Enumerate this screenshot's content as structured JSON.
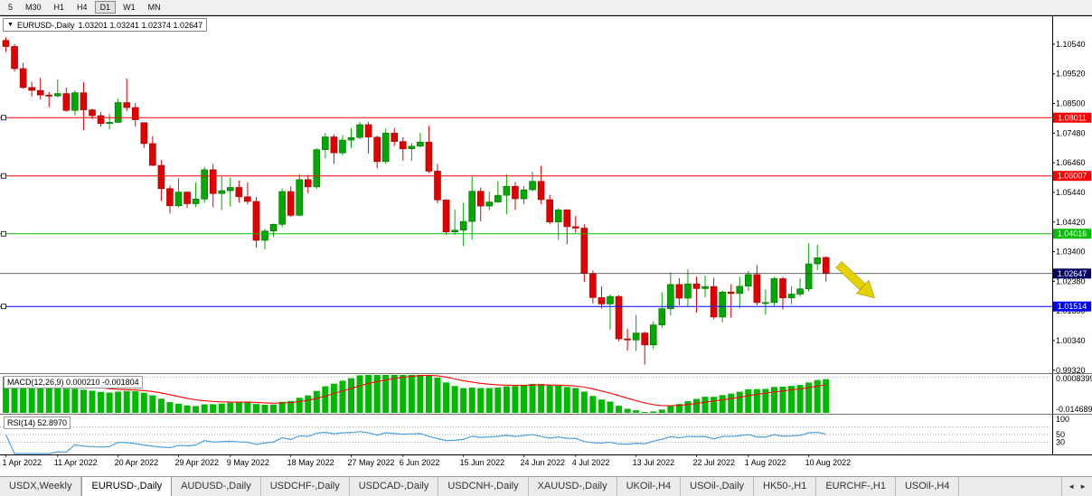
{
  "toolbar": {
    "timeframes": [
      {
        "label": "5",
        "active": false
      },
      {
        "label": "M30",
        "active": false
      },
      {
        "label": "H1",
        "active": false
      },
      {
        "label": "H4",
        "active": false
      },
      {
        "label": "D1",
        "active": true
      },
      {
        "label": "W1",
        "active": false
      },
      {
        "label": "MN",
        "active": false
      }
    ]
  },
  "chart": {
    "symbol_label": "EURUSD-,Daily",
    "ohlc": "1.03201 1.03241 1.02374 1.02647",
    "open": "1.03201",
    "high": "1.03241",
    "low": "1.02374",
    "close": "1.02647",
    "price_axis": [
      "1.10540",
      "1.09520",
      "1.08500",
      "1.07480",
      "1.06460",
      "1.05440",
      "1.04420",
      "1.03400",
      "1.02380",
      "1.01360",
      "1.00340",
      "0.99320"
    ],
    "hlines": [
      {
        "price": 1.08011,
        "label": "1.08011",
        "color": "#ff0000"
      },
      {
        "price": 1.06007,
        "label": "1.06007",
        "color": "#ff0000"
      },
      {
        "price": 1.04016,
        "label": "1.04016",
        "color": "#00c000"
      },
      {
        "price": 1.01514,
        "label": "1.01514",
        "color": "#0000ff"
      }
    ],
    "current_price": {
      "price": 1.02647,
      "label": "1.02647",
      "tag_color": "#000066",
      "line_color": "#333333"
    }
  },
  "colors": {
    "up": "#00a800",
    "up_border": "#007000",
    "down": "#e00000",
    "down_border": "#9c0000",
    "macd_hist": "#00b800",
    "macd_signal": "#ff0000",
    "rsi_line": "#4aa0e8",
    "arrow": "#e5d000",
    "arrow_border": "#a69400"
  },
  "macd": {
    "display": "MACD(12,26,9) 0.000210 -0.001804",
    "name": "MACD",
    "fast": 12,
    "slow": 26,
    "signal_period": 9,
    "macd_value": "0.000210",
    "signal_value": "-0.001804",
    "scale_top": "0.0008399",
    "scale_bottom": "-0.0146899"
  },
  "rsi": {
    "display": "RSI(14) 52.8970",
    "name": "RSI",
    "period": 14,
    "value": "52.8970",
    "scale_labels": [
      "100",
      "50",
      "30"
    ]
  },
  "tabs": [
    {
      "label": "USDX,Weekly",
      "active": false
    },
    {
      "label": "EURUSD-,Daily",
      "active": true
    },
    {
      "label": "AUDUSD-,Daily",
      "active": false
    },
    {
      "label": "USDCHF-,Daily",
      "active": false
    },
    {
      "label": "USDCAD-,Daily",
      "active": false
    },
    {
      "label": "USDCNH-,Daily",
      "active": false
    },
    {
      "label": "XAUUSD-,Daily",
      "active": false
    },
    {
      "label": "UKOil-,H4",
      "active": false
    },
    {
      "label": "USOil-,Daily",
      "active": false
    },
    {
      "label": "HK50-,H1",
      "active": false
    },
    {
      "label": "EURCHF-,H1",
      "active": false
    },
    {
      "label": "USOil-,H4",
      "active": false
    }
  ],
  "tab_arrows": {
    "left": "◄",
    "right": "►"
  },
  "chart_data": {
    "type": "candlestick",
    "title": "EURUSD-,Daily",
    "y_range": [
      0.9922,
      1.1147
    ],
    "price_axis_ticks": [
      "1.10540",
      "1.09520",
      "1.08500",
      "1.07480",
      "1.06460",
      "1.05440",
      "1.04420",
      "1.03400",
      "1.02380",
      "1.01360",
      "1.00340",
      "0.99320"
    ],
    "x_labels": [
      {
        "i": 0,
        "label": "1 Apr 2022"
      },
      {
        "i": 6,
        "label": "11 Apr 2022"
      },
      {
        "i": 13,
        "label": "20 Apr 2022"
      },
      {
        "i": 20,
        "label": "29 Apr 2022"
      },
      {
        "i": 26,
        "label": "9 May 2022"
      },
      {
        "i": 33,
        "label": "18 May 2022"
      },
      {
        "i": 40,
        "label": "27 May 2022"
      },
      {
        "i": 46,
        "label": "6 Jun 2022"
      },
      {
        "i": 53,
        "label": "15 Jun 2022"
      },
      {
        "i": 60,
        "label": "24 Jun 2022"
      },
      {
        "i": 66,
        "label": "4 Jul 2022"
      },
      {
        "i": 73,
        "label": "13 Jul 2022"
      },
      {
        "i": 80,
        "label": "22 Jul 2022"
      },
      {
        "i": 86,
        "label": "1 Aug 2022"
      },
      {
        "i": 93,
        "label": "10 Aug 2022"
      }
    ],
    "candles": [
      [
        1.1067,
        1.1077,
        1.1027,
        1.1046
      ],
      [
        1.1046,
        1.1055,
        1.096,
        1.097
      ],
      [
        1.097,
        1.099,
        1.09,
        1.0905
      ],
      [
        1.0905,
        1.0925,
        1.0874,
        1.0895
      ],
      [
        1.0895,
        1.0938,
        1.0865,
        1.0879
      ],
      [
        1.0879,
        1.089,
        1.0837,
        1.0876
      ],
      [
        1.0876,
        1.0933,
        1.0871,
        1.0884
      ],
      [
        1.0884,
        1.0904,
        1.0821,
        1.0826
      ],
      [
        1.0826,
        1.0895,
        1.0809,
        1.0887
      ],
      [
        1.0887,
        1.0923,
        1.0757,
        1.0828
      ],
      [
        1.0828,
        1.0832,
        1.0796,
        1.0808
      ],
      [
        1.0808,
        1.0821,
        1.077,
        1.0781
      ],
      [
        1.0781,
        1.0815,
        1.0761,
        1.0785
      ],
      [
        1.0785,
        1.0867,
        1.0782,
        1.0853
      ],
      [
        1.0853,
        1.0936,
        1.0824,
        1.0836
      ],
      [
        1.0836,
        1.0852,
        1.077,
        1.0794
      ],
      [
        1.0784,
        1.0784,
        1.0697,
        1.0712
      ],
      [
        1.0712,
        1.0738,
        1.0635,
        1.0637
      ],
      [
        1.0637,
        1.0655,
        1.0514,
        1.0557
      ],
      [
        1.0557,
        1.0567,
        1.0471,
        1.0498
      ],
      [
        1.0498,
        1.0593,
        1.0493,
        1.0545
      ],
      [
        1.0545,
        1.0547,
        1.049,
        1.0505
      ],
      [
        1.0505,
        1.0578,
        1.0493,
        1.0521
      ],
      [
        1.0521,
        1.0632,
        1.0508,
        1.0622
      ],
      [
        1.0622,
        1.0642,
        1.0493,
        1.054
      ],
      [
        1.054,
        1.0599,
        1.0483,
        1.055
      ],
      [
        1.055,
        1.0595,
        1.0495,
        1.0561
      ],
      [
        1.0561,
        1.0585,
        1.0508,
        1.0529
      ],
      [
        1.0529,
        1.0579,
        1.0503,
        1.0513
      ],
      [
        1.0513,
        1.0528,
        1.0354,
        1.0379
      ],
      [
        1.0379,
        1.0419,
        1.0348,
        1.0411
      ],
      [
        1.0411,
        1.0437,
        1.039,
        1.0434
      ],
      [
        1.0434,
        1.0557,
        1.0424,
        1.0547
      ],
      [
        1.0547,
        1.0564,
        1.0459,
        1.0465
      ],
      [
        1.0465,
        1.0607,
        1.0462,
        1.0588
      ],
      [
        1.0588,
        1.0604,
        1.0541,
        1.0563
      ],
      [
        1.0563,
        1.0697,
        1.0556,
        1.0691
      ],
      [
        1.0691,
        1.0748,
        1.0661,
        1.0735
      ],
      [
        1.0735,
        1.0744,
        1.0642,
        1.068
      ],
      [
        1.068,
        1.0741,
        1.0671,
        1.0724
      ],
      [
        1.0724,
        1.0766,
        1.0697,
        1.0733
      ],
      [
        1.0733,
        1.0786,
        1.0727,
        1.0777
      ],
      [
        1.0777,
        1.0787,
        1.0678,
        1.0734
      ],
      [
        1.0734,
        1.0739,
        1.0627,
        1.065
      ],
      [
        1.065,
        1.0764,
        1.0642,
        1.0748
      ],
      [
        1.0748,
        1.0765,
        1.0704,
        1.0719
      ],
      [
        1.0719,
        1.0734,
        1.0653,
        1.0694
      ],
      [
        1.0694,
        1.0714,
        1.0652,
        1.0703
      ],
      [
        1.0703,
        1.0749,
        1.0699,
        1.0717
      ],
      [
        1.0717,
        1.0773,
        1.0611,
        1.0617
      ],
      [
        1.0617,
        1.0642,
        1.0507,
        1.0518
      ],
      [
        1.0518,
        1.0521,
        1.0398,
        1.0408
      ],
      [
        1.0408,
        1.0485,
        1.0397,
        1.0414
      ],
      [
        1.0414,
        1.0508,
        1.0359,
        1.0444
      ],
      [
        1.0444,
        1.0601,
        1.0381,
        1.0548
      ],
      [
        1.0548,
        1.0561,
        1.0444,
        1.0497
      ],
      [
        1.0497,
        1.0546,
        1.0482,
        1.0511
      ],
      [
        1.0511,
        1.0582,
        1.0508,
        1.0534
      ],
      [
        1.0534,
        1.0606,
        1.0469,
        1.0565
      ],
      [
        1.0565,
        1.058,
        1.0483,
        1.0522
      ],
      [
        1.0522,
        1.0566,
        1.0504,
        1.0553
      ],
      [
        1.0553,
        1.0615,
        1.0548,
        1.0582
      ],
      [
        1.0582,
        1.0636,
        1.0503,
        1.0519
      ],
      [
        1.0519,
        1.0536,
        1.0434,
        1.0442
      ],
      [
        1.0442,
        1.0489,
        1.0381,
        1.0484
      ],
      [
        1.0484,
        1.0486,
        1.0365,
        1.0426
      ],
      [
        1.0426,
        1.0463,
        1.0405,
        1.0421
      ],
      [
        1.0421,
        1.0434,
        1.0236,
        1.0265
      ],
      [
        1.0265,
        1.0275,
        1.0162,
        1.0182
      ],
      [
        1.0182,
        1.0221,
        1.0144,
        1.016
      ],
      [
        1.016,
        1.0192,
        1.0072,
        1.0186
      ],
      [
        1.0186,
        1.019,
        1.0032,
        1.004
      ],
      [
        1.004,
        1.0075,
        0.9999,
        1.0036
      ],
      [
        1.0036,
        1.0122,
        0.9998,
        1.006
      ],
      [
        1.006,
        1.0065,
        0.9952,
        1.0019
      ],
      [
        1.0019,
        1.01,
        1.0005,
        1.0088
      ],
      [
        1.0088,
        1.0201,
        1.0078,
        1.0144
      ],
      [
        1.0144,
        1.0269,
        1.0121,
        1.0227
      ],
      [
        1.0227,
        1.0249,
        1.0155,
        1.018
      ],
      [
        1.018,
        1.0279,
        1.0152,
        1.0229
      ],
      [
        1.0229,
        1.0254,
        1.013,
        1.0213
      ],
      [
        1.0213,
        1.0258,
        1.0183,
        1.022
      ],
      [
        1.022,
        1.025,
        1.0108,
        1.0115
      ],
      [
        1.0115,
        1.0206,
        1.0097,
        1.0201
      ],
      [
        1.0201,
        1.0228,
        1.0113,
        1.0196
      ],
      [
        1.0196,
        1.0254,
        1.0145,
        1.0221
      ],
      [
        1.0221,
        1.0274,
        1.0205,
        1.0261
      ],
      [
        1.0261,
        1.0294,
        1.0155,
        1.0165
      ],
      [
        1.0165,
        1.021,
        1.0123,
        1.0165
      ],
      [
        1.0165,
        1.0254,
        1.0152,
        1.0247
      ],
      [
        1.0247,
        1.0253,
        1.0141,
        1.0181
      ],
      [
        1.0181,
        1.0221,
        1.0159,
        1.0194
      ],
      [
        1.0194,
        1.0248,
        1.0185,
        1.0212
      ],
      [
        1.0212,
        1.0369,
        1.0202,
        1.0298
      ],
      [
        1.0298,
        1.0364,
        1.0276,
        1.0319
      ],
      [
        1.03201,
        1.03241,
        1.02374,
        1.02647
      ]
    ],
    "hlines": [
      1.08011,
      1.06007,
      1.04016,
      1.01514
    ],
    "current_price": 1.02647,
    "indicators": [
      {
        "name": "MACD",
        "params": [
          12,
          26,
          9
        ],
        "values": [
          0.00021,
          -0.001804
        ]
      },
      {
        "name": "RSI",
        "params": [
          14
        ],
        "value": 52.897
      }
    ]
  }
}
